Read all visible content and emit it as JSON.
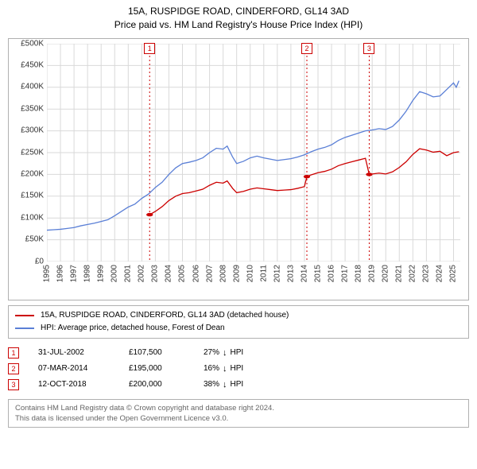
{
  "title": {
    "line1": "15A, RUSPIDGE ROAD, CINDERFORD, GL14 3AD",
    "line2": "Price paid vs. HM Land Registry's House Price Index (HPI)",
    "fontsize": 12,
    "color": "#000000"
  },
  "chart": {
    "type": "line",
    "background_color": "#ffffff",
    "border_color": "#b0b0b0",
    "grid_color": "#d9d9d9",
    "y": {
      "min": 0,
      "max": 500000,
      "ticks": [
        0,
        50000,
        100000,
        150000,
        200000,
        250000,
        300000,
        350000,
        400000,
        450000,
        500000
      ],
      "tick_labels": [
        "£0",
        "£50K",
        "£100K",
        "£150K",
        "£200K",
        "£250K",
        "£300K",
        "£350K",
        "£400K",
        "£450K",
        "£500K"
      ],
      "label_fontsize": 10
    },
    "x": {
      "min": 1995,
      "max": 2025.5,
      "ticks": [
        1995,
        1996,
        1997,
        1998,
        1999,
        2000,
        2001,
        2002,
        2003,
        2004,
        2005,
        2006,
        2007,
        2008,
        2009,
        2010,
        2011,
        2012,
        2013,
        2014,
        2015,
        2016,
        2017,
        2018,
        2019,
        2020,
        2021,
        2022,
        2023,
        2024,
        2025
      ],
      "label_fontsize": 10
    },
    "series_hpi": {
      "label": "HPI: Average price, detached house, Forest of Dean",
      "color": "#5a7fd6",
      "line_width": 1.3,
      "points": [
        [
          1995,
          72000
        ],
        [
          1995.5,
          73000
        ],
        [
          1996,
          74000
        ],
        [
          1996.5,
          76000
        ],
        [
          1997,
          78000
        ],
        [
          1997.5,
          82000
        ],
        [
          1998,
          85000
        ],
        [
          1998.5,
          88000
        ],
        [
          1999,
          92000
        ],
        [
          1999.5,
          96000
        ],
        [
          2000,
          105000
        ],
        [
          2000.5,
          115000
        ],
        [
          2001,
          125000
        ],
        [
          2001.5,
          132000
        ],
        [
          2002,
          145000
        ],
        [
          2002.5,
          155000
        ],
        [
          2003,
          170000
        ],
        [
          2003.5,
          182000
        ],
        [
          2004,
          200000
        ],
        [
          2004.5,
          215000
        ],
        [
          2005,
          225000
        ],
        [
          2005.5,
          228000
        ],
        [
          2006,
          232000
        ],
        [
          2006.5,
          238000
        ],
        [
          2007,
          250000
        ],
        [
          2007.5,
          260000
        ],
        [
          2008,
          258000
        ],
        [
          2008.3,
          265000
        ],
        [
          2008.7,
          240000
        ],
        [
          2009,
          225000
        ],
        [
          2009.5,
          230000
        ],
        [
          2010,
          238000
        ],
        [
          2010.5,
          242000
        ],
        [
          2011,
          238000
        ],
        [
          2011.5,
          235000
        ],
        [
          2012,
          232000
        ],
        [
          2012.5,
          234000
        ],
        [
          2013,
          236000
        ],
        [
          2013.5,
          240000
        ],
        [
          2014,
          245000
        ],
        [
          2014.5,
          252000
        ],
        [
          2015,
          258000
        ],
        [
          2015.5,
          262000
        ],
        [
          2016,
          268000
        ],
        [
          2016.5,
          278000
        ],
        [
          2017,
          285000
        ],
        [
          2017.5,
          290000
        ],
        [
          2018,
          295000
        ],
        [
          2018.5,
          300000
        ],
        [
          2019,
          302000
        ],
        [
          2019.5,
          305000
        ],
        [
          2020,
          303000
        ],
        [
          2020.5,
          310000
        ],
        [
          2021,
          325000
        ],
        [
          2021.5,
          345000
        ],
        [
          2022,
          370000
        ],
        [
          2022.5,
          390000
        ],
        [
          2023,
          385000
        ],
        [
          2023.5,
          378000
        ],
        [
          2024,
          380000
        ],
        [
          2024.5,
          395000
        ],
        [
          2025,
          410000
        ],
        [
          2025.2,
          400000
        ],
        [
          2025.4,
          415000
        ]
      ]
    },
    "series_property": {
      "label": "15A, RUSPIDGE ROAD, CINDERFORD, GL14 3AD (detached house)",
      "color": "#cc0000",
      "line_width": 1.3,
      "segments": [
        [
          [
            2002.58,
            107500
          ],
          [
            2003,
            115000
          ],
          [
            2003.5,
            126000
          ],
          [
            2004,
            140000
          ],
          [
            2004.5,
            150000
          ],
          [
            2005,
            156000
          ],
          [
            2005.5,
            158000
          ],
          [
            2006,
            162000
          ],
          [
            2006.5,
            166000
          ],
          [
            2007,
            175000
          ],
          [
            2007.5,
            182000
          ],
          [
            2008,
            180000
          ],
          [
            2008.3,
            185000
          ],
          [
            2008.7,
            168000
          ],
          [
            2009,
            158000
          ],
          [
            2009.5,
            161000
          ],
          [
            2010,
            166000
          ],
          [
            2010.5,
            169000
          ],
          [
            2011,
            167000
          ],
          [
            2011.5,
            165000
          ],
          [
            2012,
            163000
          ],
          [
            2012.5,
            164000
          ],
          [
            2013,
            165000
          ],
          [
            2013.5,
            168000
          ],
          [
            2014,
            172000
          ],
          [
            2014.18,
            195000
          ]
        ],
        [
          [
            2014.18,
            195000
          ],
          [
            2014.5,
            199000
          ],
          [
            2015,
            204000
          ],
          [
            2015.5,
            207000
          ],
          [
            2016,
            212000
          ],
          [
            2016.5,
            220000
          ],
          [
            2017,
            225000
          ],
          [
            2017.5,
            229000
          ],
          [
            2018,
            233000
          ],
          [
            2018.5,
            237000
          ],
          [
            2018.78,
            200000
          ]
        ],
        [
          [
            2018.78,
            200000
          ],
          [
            2019,
            201000
          ],
          [
            2019.5,
            203000
          ],
          [
            2020,
            201000
          ],
          [
            2020.5,
            206000
          ],
          [
            2021,
            216000
          ],
          [
            2021.5,
            229000
          ],
          [
            2022,
            246000
          ],
          [
            2022.5,
            259000
          ],
          [
            2023,
            256000
          ],
          [
            2023.5,
            251000
          ],
          [
            2024,
            253000
          ],
          [
            2024.5,
            243000
          ],
          [
            2025,
            250000
          ],
          [
            2025.4,
            252000
          ]
        ]
      ],
      "sale_points": [
        {
          "year": 2002.58,
          "price": 107500
        },
        {
          "year": 2014.18,
          "price": 195000
        },
        {
          "year": 2018.78,
          "price": 200000
        }
      ]
    },
    "sale_markers": [
      {
        "num": "1",
        "year": 2002.58,
        "color": "#cc0000"
      },
      {
        "num": "2",
        "year": 2014.18,
        "color": "#cc0000"
      },
      {
        "num": "3",
        "year": 2018.78,
        "color": "#cc0000"
      }
    ]
  },
  "legend": {
    "items": [
      {
        "color": "#cc0000",
        "label": "15A, RUSPIDGE ROAD, CINDERFORD, GL14 3AD (detached house)"
      },
      {
        "color": "#5a7fd6",
        "label": "HPI: Average price, detached house, Forest of Dean"
      }
    ]
  },
  "sales_table": {
    "rows": [
      {
        "num": "1",
        "date": "31-JUL-2002",
        "price": "£107,500",
        "pct": "27%",
        "sym": "↓",
        "suffix": "HPI"
      },
      {
        "num": "2",
        "date": "07-MAR-2014",
        "price": "£195,000",
        "pct": "16%",
        "sym": "↓",
        "suffix": "HPI"
      },
      {
        "num": "3",
        "date": "12-OCT-2018",
        "price": "£200,000",
        "pct": "38%",
        "sym": "↓",
        "suffix": "HPI"
      }
    ]
  },
  "attribution": {
    "line1": "Contains HM Land Registry data © Crown copyright and database right 2024.",
    "line2": "This data is licensed under the Open Government Licence v3.0."
  }
}
